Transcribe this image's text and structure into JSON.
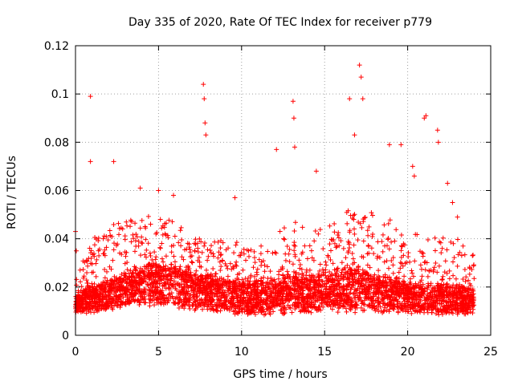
{
  "chart_data": {
    "type": "scatter",
    "title": "Day 335 of 2020, Rate Of TEC Index for receiver p779",
    "xlabel": "GPS time / hours",
    "ylabel": "ROTI / TECUs",
    "xlim": [
      0,
      25
    ],
    "ylim": [
      0,
      0.12
    ],
    "xticks": [
      0,
      5,
      10,
      15,
      20,
      25
    ],
    "yticks": [
      0,
      0.02,
      0.04,
      0.06,
      0.08,
      0.1,
      0.12
    ],
    "xtick_labels": [
      "0",
      "5",
      "10",
      "15",
      "20",
      "25"
    ],
    "ytick_labels": [
      "0",
      "0.02",
      "0.04",
      "0.06",
      "0.08",
      "0.1",
      "0.12"
    ],
    "grid": true,
    "marker": "+",
    "color": "#ff0000",
    "series": [
      {
        "x": [
          0.0,
          0.05,
          0.9,
          0.9,
          2.3,
          3.9,
          5.0,
          5.9,
          7.7,
          7.75,
          7.8,
          7.85,
          9.6,
          12.1,
          13.1,
          13.15,
          13.2,
          14.5,
          16.5,
          16.8,
          17.1,
          17.2,
          17.3,
          18.9,
          19.6,
          20.3,
          20.4,
          21.0,
          21.1,
          21.8,
          21.85,
          22.4,
          22.7,
          23.0,
          23.9
        ],
        "y": [
          0.043,
          0.035,
          0.099,
          0.072,
          0.072,
          0.061,
          0.06,
          0.058,
          0.104,
          0.098,
          0.088,
          0.083,
          0.057,
          0.077,
          0.097,
          0.09,
          0.078,
          0.068,
          0.098,
          0.083,
          0.112,
          0.107,
          0.098,
          0.079,
          0.079,
          0.07,
          0.066,
          0.09,
          0.091,
          0.085,
          0.08,
          0.063,
          0.055,
          0.049,
          0.033
        ]
      }
    ],
    "density_envelope": {
      "x": [
        0,
        1,
        2,
        3,
        4,
        5,
        6,
        7,
        8,
        9,
        10,
        11,
        12,
        13,
        14,
        15,
        16,
        17,
        18,
        19,
        20,
        21,
        22,
        23,
        24
      ],
      "y_low": [
        0.009,
        0.009,
        0.01,
        0.011,
        0.012,
        0.012,
        0.011,
        0.01,
        0.01,
        0.009,
        0.008,
        0.008,
        0.008,
        0.009,
        0.009,
        0.009,
        0.009,
        0.009,
        0.009,
        0.009,
        0.009,
        0.008,
        0.008,
        0.008,
        0.009
      ],
      "y_mid": [
        0.014,
        0.016,
        0.018,
        0.02,
        0.022,
        0.024,
        0.022,
        0.02,
        0.019,
        0.018,
        0.017,
        0.017,
        0.018,
        0.019,
        0.019,
        0.02,
        0.02,
        0.021,
        0.019,
        0.018,
        0.017,
        0.016,
        0.016,
        0.016,
        0.015
      ],
      "y_high": [
        0.028,
        0.04,
        0.045,
        0.048,
        0.05,
        0.05,
        0.048,
        0.042,
        0.038,
        0.04,
        0.038,
        0.036,
        0.045,
        0.05,
        0.045,
        0.045,
        0.05,
        0.055,
        0.05,
        0.048,
        0.045,
        0.04,
        0.042,
        0.04,
        0.035
      ]
    }
  }
}
